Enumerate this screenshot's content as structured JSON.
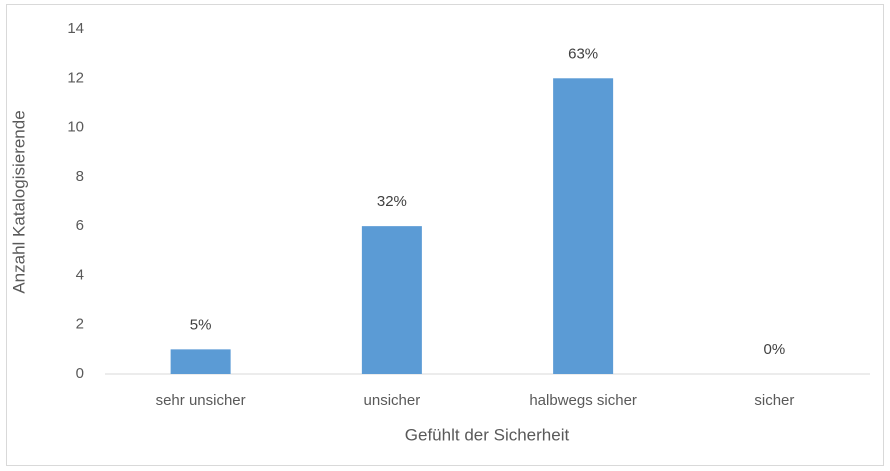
{
  "chart_data": {
    "type": "bar",
    "xlabel": "Gefühlt der Sicherheit",
    "ylabel": "Anzahl Katalogisierende",
    "categories": [
      "sehr unsicher",
      "unsicher",
      "halbwegs sicher",
      "sicher"
    ],
    "values": [
      1,
      6,
      12,
      0
    ],
    "value_labels": [
      "5%",
      "32%",
      "63%",
      "0%"
    ],
    "color": "#5b9bd5",
    "ylim": [
      0,
      14
    ],
    "yticks": [
      0,
      2,
      4,
      6,
      8,
      10,
      12,
      14
    ],
    "grid": false
  }
}
